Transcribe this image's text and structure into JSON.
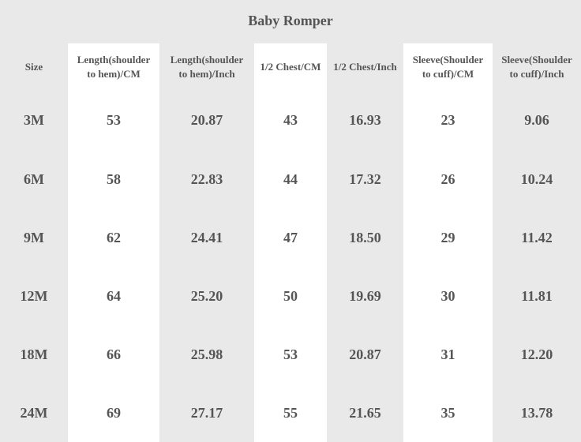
{
  "title": "Baby Romper",
  "columns": [
    [
      "Size"
    ],
    [
      "Length(shoulder",
      "to hem)/CM"
    ],
    [
      "Length(shoulder",
      "to hem)/Inch"
    ],
    [
      "1/2 Chest/CM"
    ],
    [
      "1/2 Chest/Inch"
    ],
    [
      "Sleeve(Shoulder",
      "to cuff)/CM"
    ],
    [
      "Sleeve(Shoulder",
      "to cuff)/Inch"
    ]
  ],
  "rows": [
    [
      "3M",
      "53",
      "20.87",
      "43",
      "16.93",
      "23",
      "9.06"
    ],
    [
      "6M",
      "58",
      "22.83",
      "44",
      "17.32",
      "26",
      "10.24"
    ],
    [
      "9M",
      "62",
      "24.41",
      "47",
      "18.50",
      "29",
      "11.42"
    ],
    [
      "12M",
      "64",
      "25.20",
      "50",
      "19.69",
      "30",
      "11.81"
    ],
    [
      "18M",
      "66",
      "25.98",
      "53",
      "20.87",
      "31",
      "12.20"
    ],
    [
      "24M",
      "69",
      "27.17",
      "55",
      "21.65",
      "35",
      "13.78"
    ]
  ],
  "colors": {
    "background": "#e9e9e9",
    "highlight_column": "#ffffff",
    "text": "#555555"
  }
}
